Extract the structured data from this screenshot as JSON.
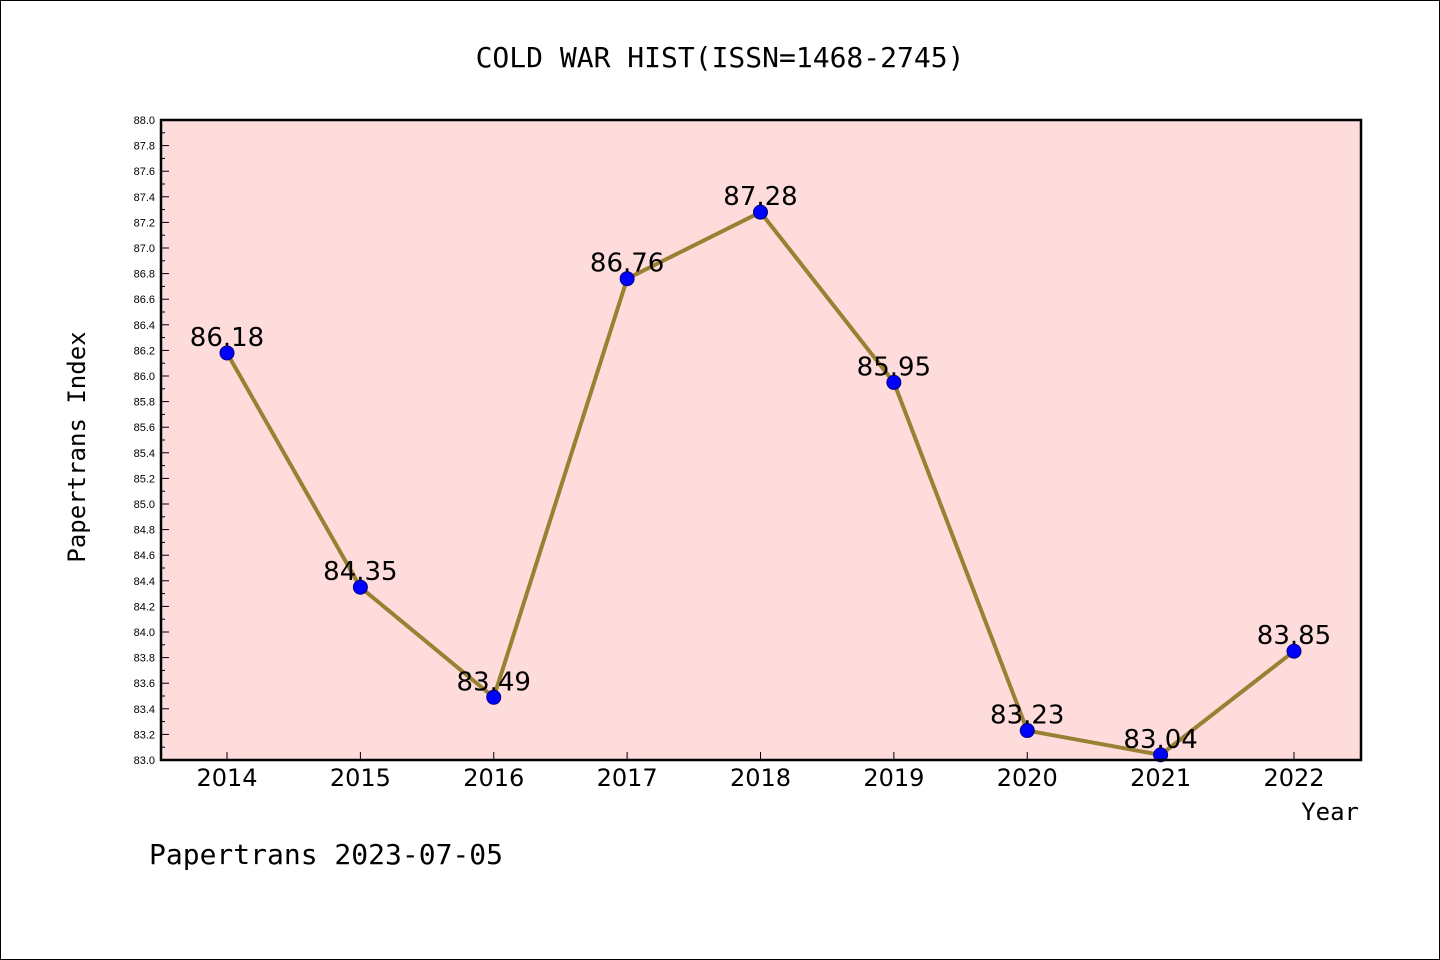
{
  "chart_data": {
    "type": "line",
    "title": "COLD WAR HIST(ISSN=1468-2745)",
    "xlabel": "Year",
    "ylabel": "Papertrans Index",
    "categories": [
      "2014",
      "2015",
      "2016",
      "2017",
      "2018",
      "2019",
      "2020",
      "2021",
      "2022"
    ],
    "series": [
      {
        "values": [
          86.18,
          84.35,
          83.49,
          86.76,
          87.28,
          85.95,
          83.23,
          83.04,
          83.85
        ],
        "labels": [
          "86.18",
          "84.35",
          "83.49",
          "86.76",
          "87.28",
          "85.95",
          "83.23",
          "83.04",
          "83.85"
        ]
      }
    ],
    "ylim": [
      83.0,
      88.0
    ],
    "yticks": [
      "83.0",
      "83.2",
      "83.4",
      "83.6",
      "83.8",
      "84.0",
      "84.2",
      "84.4",
      "84.6",
      "84.8",
      "85.0",
      "85.2",
      "85.4",
      "85.6",
      "85.8",
      "86.0",
      "86.2",
      "86.4",
      "86.6",
      "86.8",
      "87.0",
      "87.2",
      "87.4",
      "87.6",
      "87.8",
      "88.0"
    ],
    "grid": false,
    "legend": "none",
    "colors": {
      "plot_background": "#ffdcdc",
      "line": "#9a8032",
      "marker": "#0000ff",
      "marker_edge": "#000080"
    },
    "footer": "Papertrans 2023-07-05"
  }
}
